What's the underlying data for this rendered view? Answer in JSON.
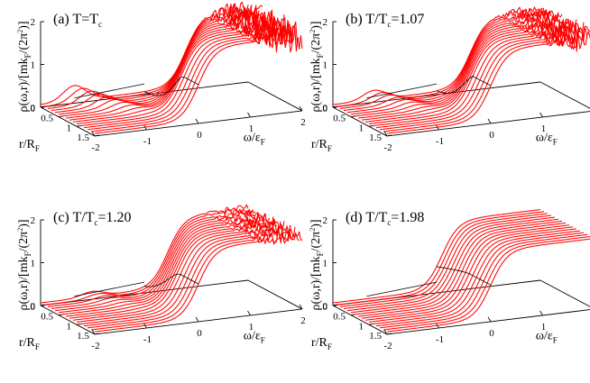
{
  "chart_data": [
    {
      "type": "line",
      "panel": "(a)",
      "title_main": "T=T",
      "title_sub": "c",
      "T_over_Tc": 1.0,
      "xlabel": "ω/ε_F",
      "ylabel": "ρ(ω,r)/[mk_F/(2π^2)]",
      "rlabel": "r/R_F",
      "xlim": [
        -2,
        2
      ],
      "rlim": [
        0,
        1.5
      ],
      "zlim": [
        0,
        2
      ],
      "x_ticks": [
        "-2",
        "-1",
        "0",
        "1",
        "2"
      ],
      "r_ticks": [
        "0",
        "0.5",
        "1",
        "1.5"
      ],
      "z_ticks": [
        "0",
        "1",
        "2"
      ],
      "r_values": [
        0,
        0.1,
        0.2,
        0.3,
        0.4,
        0.5,
        0.6,
        0.7,
        0.8,
        0.9,
        1.0,
        1.1,
        1.2,
        1.3,
        1.4,
        1.5
      ],
      "gap": 0.8,
      "gap_radius": 1.05,
      "coherence_peak": 0.35,
      "high_energy_level": 1.75,
      "noise": 0.35,
      "ridge_at_omega": 0.0
    },
    {
      "type": "line",
      "panel": "(b)",
      "title_main": "T/T",
      "title_sub": "c",
      "title_value": "=1.07",
      "T_over_Tc": 1.07,
      "xlabel": "ω/ε_F",
      "ylabel": "ρ(ω,r)/[mk_F/(2π^2)]",
      "rlabel": "r/R_F",
      "xlim": [
        -2,
        2
      ],
      "rlim": [
        0,
        1.5
      ],
      "zlim": [
        0,
        2
      ],
      "x_ticks": [
        "-2",
        "-1",
        "0",
        "1",
        "2"
      ],
      "r_ticks": [
        "0",
        "0.5",
        "1",
        "1.5"
      ],
      "z_ticks": [
        "0",
        "1",
        "2"
      ],
      "r_values": [
        0,
        0.1,
        0.2,
        0.3,
        0.4,
        0.5,
        0.6,
        0.7,
        0.8,
        0.9,
        1.0,
        1.1,
        1.2,
        1.3,
        1.4,
        1.5
      ],
      "gap": 0.65,
      "gap_radius": 1.0,
      "coherence_peak": 0.22,
      "high_energy_level": 1.7,
      "noise": 0.25,
      "ridge_at_omega": 0.0
    },
    {
      "type": "line",
      "panel": "(c)",
      "title_main": "T/T",
      "title_sub": "c",
      "title_value": "=1.20",
      "T_over_Tc": 1.2,
      "xlabel": "ω/ε_F",
      "ylabel": "ρ(ω,r)/[mk_F/(2π^2)]",
      "rlabel": "r/R_F",
      "xlim": [
        -2,
        2
      ],
      "rlim": [
        0,
        1.5
      ],
      "zlim": [
        0,
        2
      ],
      "x_ticks": [
        "-2",
        "-1",
        "0",
        "1",
        "2"
      ],
      "r_ticks": [
        "0",
        "0.5",
        "1",
        "1.5"
      ],
      "z_ticks": [
        "0",
        "1",
        "2"
      ],
      "r_values": [
        0,
        0.1,
        0.2,
        0.3,
        0.4,
        0.5,
        0.6,
        0.7,
        0.8,
        0.9,
        1.0,
        1.1,
        1.2,
        1.3,
        1.4,
        1.5
      ],
      "gap": 0.45,
      "gap_radius": 0.95,
      "coherence_peak": 0.12,
      "high_energy_level": 1.7,
      "noise": 0.15,
      "ridge_at_omega": 0.0
    },
    {
      "type": "line",
      "panel": "(d)",
      "title_main": "T/T",
      "title_sub": "c",
      "title_value": "=1.98",
      "T_over_Tc": 1.98,
      "xlabel": "ω/ε_F",
      "ylabel": "ρ(ω,r)/[mk_F/(2π^2)]",
      "rlabel": "r/R_F",
      "xlim": [
        -2,
        2
      ],
      "rlim": [
        0,
        1.5
      ],
      "zlim": [
        0,
        2
      ],
      "x_ticks": [
        "-2",
        "-1",
        "0",
        "1",
        "2"
      ],
      "r_ticks": [
        "0",
        "0.5",
        "1",
        "1.5"
      ],
      "z_ticks": [
        "0",
        "1",
        "2"
      ],
      "r_values": [
        0,
        0.1,
        0.2,
        0.3,
        0.4,
        0.5,
        0.6,
        0.7,
        0.8,
        0.9,
        1.0,
        1.1,
        1.2,
        1.3,
        1.4,
        1.5
      ],
      "gap": 0.1,
      "gap_radius": 0.9,
      "coherence_peak": 0.0,
      "high_energy_level": 1.65,
      "noise": 0.0,
      "ridge_at_omega": 0.0
    }
  ],
  "colors": {
    "curve": "#ff0000",
    "axis": "#000000",
    "background": "#ffffff"
  }
}
